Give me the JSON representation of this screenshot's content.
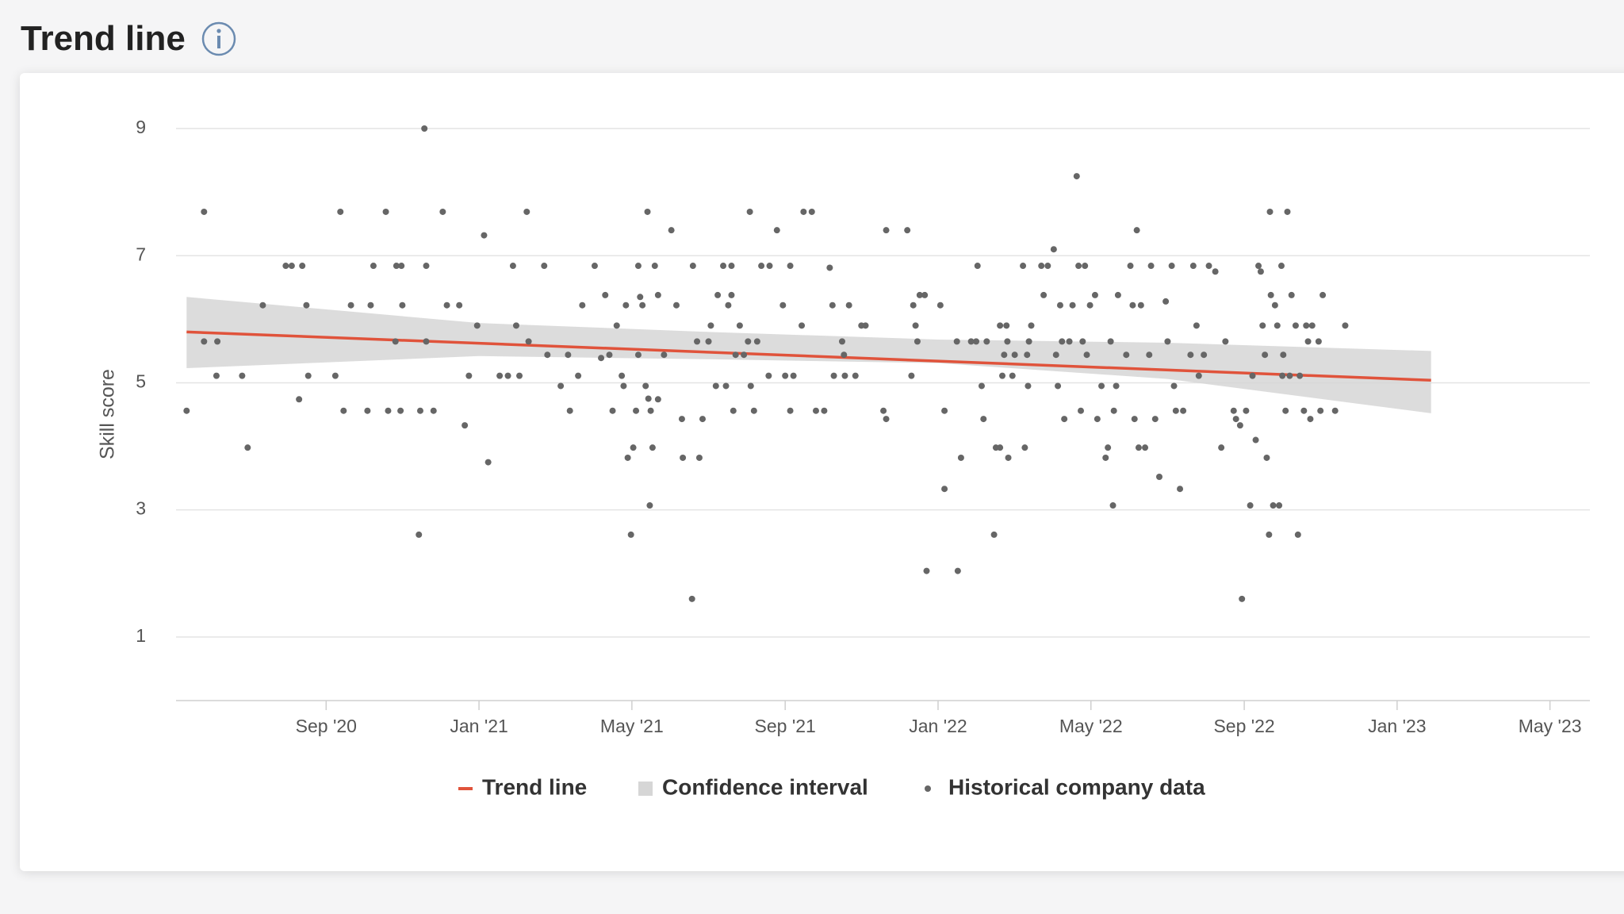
{
  "chart_data": {
    "type": "scatter",
    "title": "Trend line",
    "y_label": "Skill score",
    "xlim": [
      2020.34,
      2023.42
    ],
    "ylim": [
      0,
      9
    ],
    "xticks": [
      {
        "value": 2020.667,
        "label": "Sep '20"
      },
      {
        "value": 2021.0,
        "label": "Jan '21"
      },
      {
        "value": 2021.333,
        "label": "May '21"
      },
      {
        "value": 2021.667,
        "label": "Sep '21"
      },
      {
        "value": 2022.0,
        "label": "Jan '22"
      },
      {
        "value": 2022.333,
        "label": "May '22"
      },
      {
        "value": 2022.667,
        "label": "Sep '22"
      },
      {
        "value": 2023.0,
        "label": "Jan '23"
      },
      {
        "value": 2023.333,
        "label": "May '23"
      }
    ],
    "yticks": [
      1,
      3,
      5,
      7,
      9
    ],
    "grid": true,
    "series": [
      {
        "name": "Confidence interval",
        "type": "area",
        "color": "#d6d6d6",
        "x": [
          2020.363,
          2021.0,
          2021.5,
          2022.0,
          2022.5,
          2023.074
        ],
        "upper": [
          6.35,
          5.94,
          5.8,
          5.68,
          5.63,
          5.5
        ],
        "lower": [
          5.23,
          5.42,
          5.37,
          5.31,
          5.06,
          4.52
        ]
      },
      {
        "name": "Trend line",
        "type": "line",
        "color": "#e0533b",
        "x": [
          2020.363,
          2023.074
        ],
        "values": [
          5.8,
          5.04
        ]
      },
      {
        "name": "Historical company data",
        "type": "scatter",
        "color": "#666666",
        "x": [
          2020.363,
          2020.401,
          2020.401,
          2020.43,
          2020.428,
          2020.484,
          2020.496,
          2020.529,
          2020.579,
          2020.592,
          2020.615,
          2020.608,
          2020.624,
          2020.628,
          2020.687,
          2020.698,
          2020.705,
          2020.721,
          2020.757,
          2020.764,
          2020.77,
          2020.797,
          2020.802,
          2020.818,
          2020.82,
          2020.831,
          2020.829,
          2020.833,
          2020.869,
          2020.872,
          2020.881,
          2020.885,
          2020.885,
          2020.901,
          2020.921,
          2020.93,
          2020.957,
          2020.969,
          2020.978,
          2020.996,
          2021.011,
          2021.02,
          2021.045,
          2021.063,
          2021.074,
          2021.081,
          2021.088,
          2021.104,
          2021.108,
          2021.142,
          2021.149,
          2021.178,
          2021.194,
          2021.198,
          2021.216,
          2021.225,
          2021.252,
          2021.266,
          2021.275,
          2021.284,
          2021.291,
          2021.3,
          2021.311,
          2021.315,
          2021.32,
          2021.324,
          2021.331,
          2021.336,
          2021.342,
          2021.347,
          2021.347,
          2021.351,
          2021.356,
          2021.363,
          2021.367,
          2021.369,
          2021.372,
          2021.374,
          2021.378,
          2021.383,
          2021.39,
          2021.39,
          2021.403,
          2021.419,
          2021.43,
          2021.442,
          2021.444,
          2021.464,
          2021.466,
          2021.475,
          2021.48,
          2021.487,
          2021.5,
          2021.505,
          2021.516,
          2021.52,
          2021.532,
          2021.538,
          2021.543,
          2021.55,
          2021.55,
          2021.554,
          2021.559,
          2021.568,
          2021.577,
          2021.586,
          2021.59,
          2021.592,
          2021.599,
          2021.606,
          2021.615,
          2021.631,
          2021.633,
          2021.649,
          2021.662,
          2021.667,
          2021.678,
          2021.678,
          2021.685,
          2021.703,
          2021.707,
          2021.725,
          2021.734,
          2021.752,
          2021.764,
          2021.77,
          2021.773,
          2021.791,
          2021.795,
          2021.797,
          2021.806,
          2021.82,
          2021.833,
          2021.842,
          2021.881,
          2021.887,
          2021.887,
          2021.933,
          2021.942,
          2021.946,
          2021.951,
          2021.955,
          2021.96,
          2021.971,
          2021.975,
          2022.005,
          2022.014,
          2022.014,
          2022.041,
          2022.043,
          2022.05,
          2022.072,
          2022.083,
          2022.086,
          2022.095,
          2022.099,
          2022.106,
          2022.122,
          2022.126,
          2022.135,
          2022.135,
          2022.14,
          2022.144,
          2022.149,
          2022.151,
          2022.153,
          2022.162,
          2022.167,
          2022.185,
          2022.189,
          2022.194,
          2022.196,
          2022.198,
          2022.203,
          2022.225,
          2022.23,
          2022.239,
          2022.252,
          2022.257,
          2022.261,
          2022.266,
          2022.27,
          2022.275,
          2022.286,
          2022.293,
          2022.302,
          2022.306,
          2022.311,
          2022.315,
          2022.32,
          2022.324,
          2022.331,
          2022.342,
          2022.347,
          2022.356,
          2022.365,
          2022.37,
          2022.376,
          2022.381,
          2022.383,
          2022.388,
          2022.392,
          2022.41,
          2022.419,
          2022.424,
          2022.428,
          2022.433,
          2022.437,
          2022.442,
          2022.451,
          2022.46,
          2022.464,
          2022.473,
          2022.482,
          2022.496,
          2022.5,
          2022.509,
          2022.514,
          2022.518,
          2022.527,
          2022.534,
          2022.55,
          2022.556,
          2022.563,
          2022.568,
          2022.579,
          2022.59,
          2022.604,
          2022.617,
          2022.626,
          2022.644,
          2022.649,
          2022.658,
          2022.662,
          2022.671,
          2022.68,
          2022.685,
          2022.692,
          2022.698,
          2022.703,
          2022.707,
          2022.712,
          2022.716,
          2022.721,
          2022.723,
          2022.725,
          2022.73,
          2022.734,
          2022.739,
          2022.743,
          2022.748,
          2022.75,
          2022.752,
          2022.757,
          2022.761,
          2022.766,
          2022.77,
          2022.779,
          2022.784,
          2022.788,
          2022.797,
          2022.802,
          2022.806,
          2022.811,
          2022.815,
          2022.829,
          2022.833,
          2022.838,
          2022.865,
          2022.887
        ],
        "values": [
          4.56,
          7.69,
          5.65,
          5.65,
          5.11,
          5.11,
          3.98,
          6.22,
          6.84,
          6.84,
          6.84,
          4.74,
          6.22,
          5.11,
          5.11,
          7.69,
          4.56,
          6.22,
          4.56,
          6.22,
          6.84,
          7.69,
          4.56,
          5.65,
          6.84,
          6.84,
          4.56,
          6.22,
          2.61,
          4.56,
          9.0,
          6.84,
          5.65,
          4.56,
          7.69,
          6.22,
          6.22,
          4.33,
          5.11,
          5.9,
          7.32,
          3.75,
          5.11,
          5.11,
          6.84,
          5.9,
          5.11,
          7.69,
          5.65,
          6.84,
          5.44,
          4.95,
          5.44,
          4.56,
          5.11,
          6.22,
          6.84,
          5.39,
          6.38,
          5.44,
          4.56,
          5.9,
          5.11,
          4.95,
          6.22,
          3.82,
          2.61,
          3.98,
          4.56,
          6.84,
          5.44,
          6.35,
          6.22,
          4.95,
          7.69,
          4.75,
          3.07,
          4.56,
          3.98,
          6.84,
          6.38,
          4.74,
          5.44,
          7.4,
          6.22,
          4.43,
          3.82,
          1.6,
          6.84,
          5.65,
          3.82,
          4.43,
          5.65,
          5.9,
          4.95,
          6.38,
          6.84,
          4.95,
          6.22,
          6.84,
          6.38,
          4.56,
          5.44,
          5.9,
          5.44,
          5.65,
          7.69,
          4.95,
          4.56,
          5.65,
          6.84,
          5.11,
          6.84,
          7.4,
          6.22,
          5.11,
          6.84,
          4.56,
          5.11,
          5.9,
          7.69,
          7.69,
          4.56,
          4.56,
          6.81,
          6.22,
          5.11,
          5.65,
          5.44,
          5.11,
          6.22,
          5.11,
          5.9,
          5.9,
          4.56,
          7.4,
          4.43,
          7.4,
          5.11,
          6.22,
          5.9,
          5.65,
          6.38,
          6.38,
          2.04,
          6.22,
          3.33,
          4.56,
          5.65,
          2.04,
          3.82,
          5.65,
          5.65,
          6.84,
          4.95,
          4.43,
          5.65,
          2.61,
          3.98,
          5.9,
          3.98,
          5.11,
          5.44,
          5.9,
          5.65,
          3.82,
          5.11,
          5.44,
          6.84,
          3.98,
          5.44,
          4.95,
          5.65,
          5.9,
          6.84,
          6.38,
          6.84,
          7.1,
          5.44,
          4.95,
          6.22,
          5.65,
          4.43,
          5.65,
          6.22,
          8.25,
          6.84,
          4.56,
          5.65,
          6.84,
          5.44,
          6.22,
          6.38,
          4.43,
          4.95,
          3.82,
          3.98,
          5.65,
          3.07,
          4.56,
          4.95,
          6.38,
          5.44,
          6.84,
          6.22,
          4.43,
          7.4,
          3.98,
          6.22,
          3.98,
          5.44,
          6.84,
          4.43,
          3.52,
          6.28,
          5.65,
          6.84,
          4.95,
          4.56,
          3.33,
          4.56,
          5.44,
          6.84,
          5.9,
          5.11,
          5.44,
          6.84,
          6.75,
          3.98,
          5.65,
          4.56,
          4.43,
          4.33,
          1.6,
          4.56,
          3.07,
          5.11,
          4.1,
          6.84,
          6.75,
          5.9,
          5.44,
          3.82,
          2.61,
          7.69,
          6.38,
          3.07,
          6.22,
          5.9,
          3.07,
          6.84,
          5.11,
          5.44,
          4.56,
          7.69,
          5.11,
          6.38,
          5.9,
          2.61,
          5.11,
          4.56,
          5.9,
          5.65,
          4.43,
          5.9,
          5.65,
          4.56,
          6.38,
          4.56,
          5.9
        ]
      }
    ]
  }
}
